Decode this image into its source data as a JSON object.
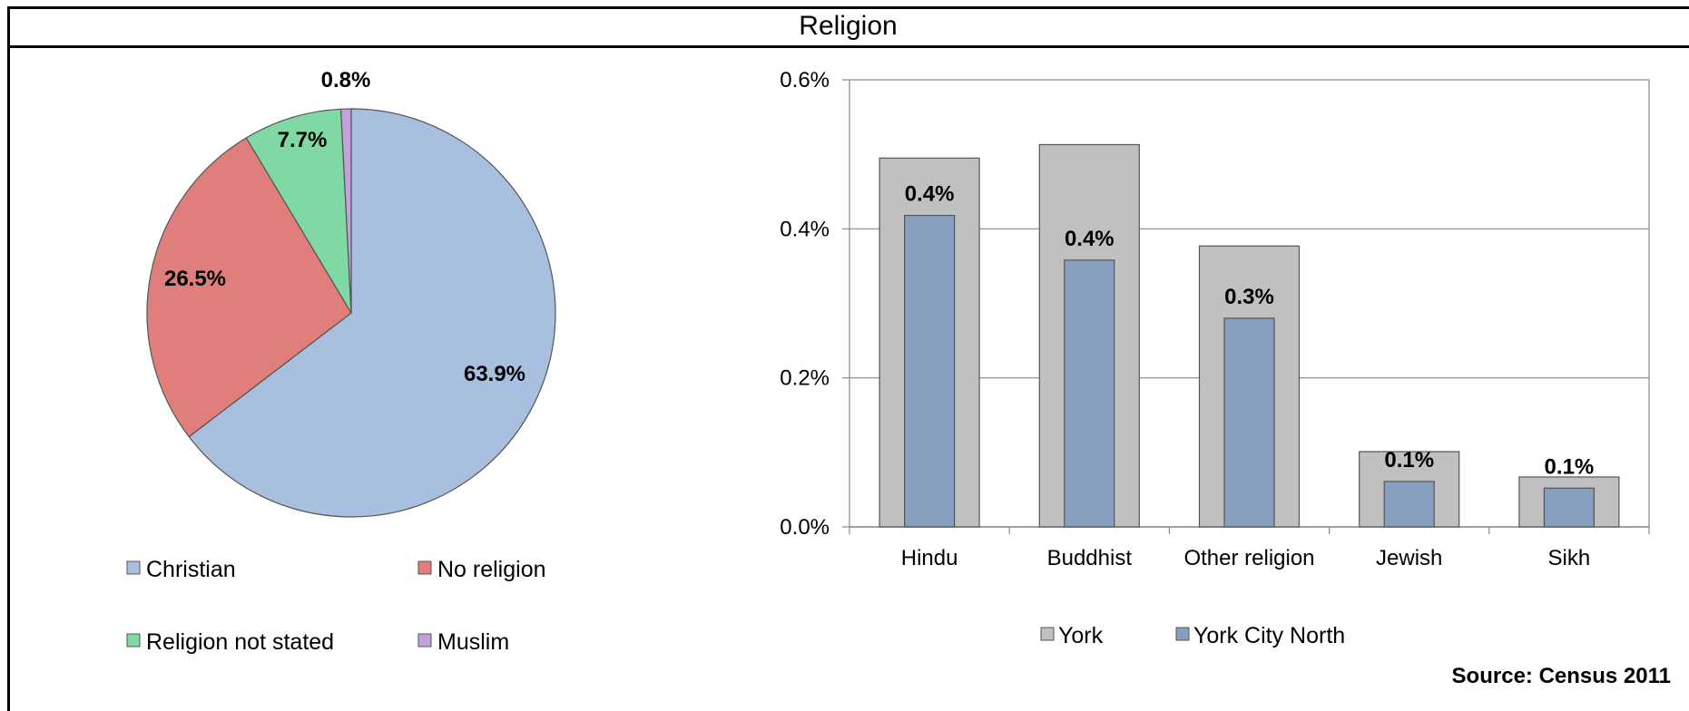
{
  "title": "Religion",
  "source": "Source: Census 2011",
  "chart_data": [
    {
      "type": "pie",
      "slices": [
        {
          "name": "Christian",
          "value": 63.9,
          "label": "63.9%",
          "color": "#a8bfdf"
        },
        {
          "name": "No religion",
          "value": 26.5,
          "label": "26.5%",
          "color": "#df7e7b"
        },
        {
          "name": "Religion not stated",
          "value": 7.7,
          "label": "7.7%",
          "color": "#80d8a5"
        },
        {
          "name": "Muslim",
          "value": 0.8,
          "label": "0.8%",
          "color": "#c3a1dd"
        }
      ],
      "legend_position": "bottom"
    },
    {
      "type": "bar",
      "categories": [
        "Hindu",
        "Buddhist",
        "Other religion",
        "Jewish",
        "Sikh"
      ],
      "series": [
        {
          "name": "York",
          "values": [
            0.495,
            0.513,
            0.377,
            0.101,
            0.067
          ],
          "color": "#c0c0c0"
        },
        {
          "name": "York City North",
          "values": [
            0.418,
            0.358,
            0.28,
            0.061,
            0.052
          ],
          "color": "#879fbe",
          "data_labels": [
            "0.4%",
            "0.4%",
            "0.3%",
            "0.1%",
            "0.1%"
          ]
        }
      ],
      "ylim": [
        0,
        0.6
      ],
      "yticks": [
        0,
        0.2,
        0.4,
        0.6
      ],
      "ytick_labels": [
        "0.0%",
        "0.2%",
        "0.4%",
        "0.6%"
      ],
      "grid": true,
      "legend_position": "bottom"
    }
  ]
}
